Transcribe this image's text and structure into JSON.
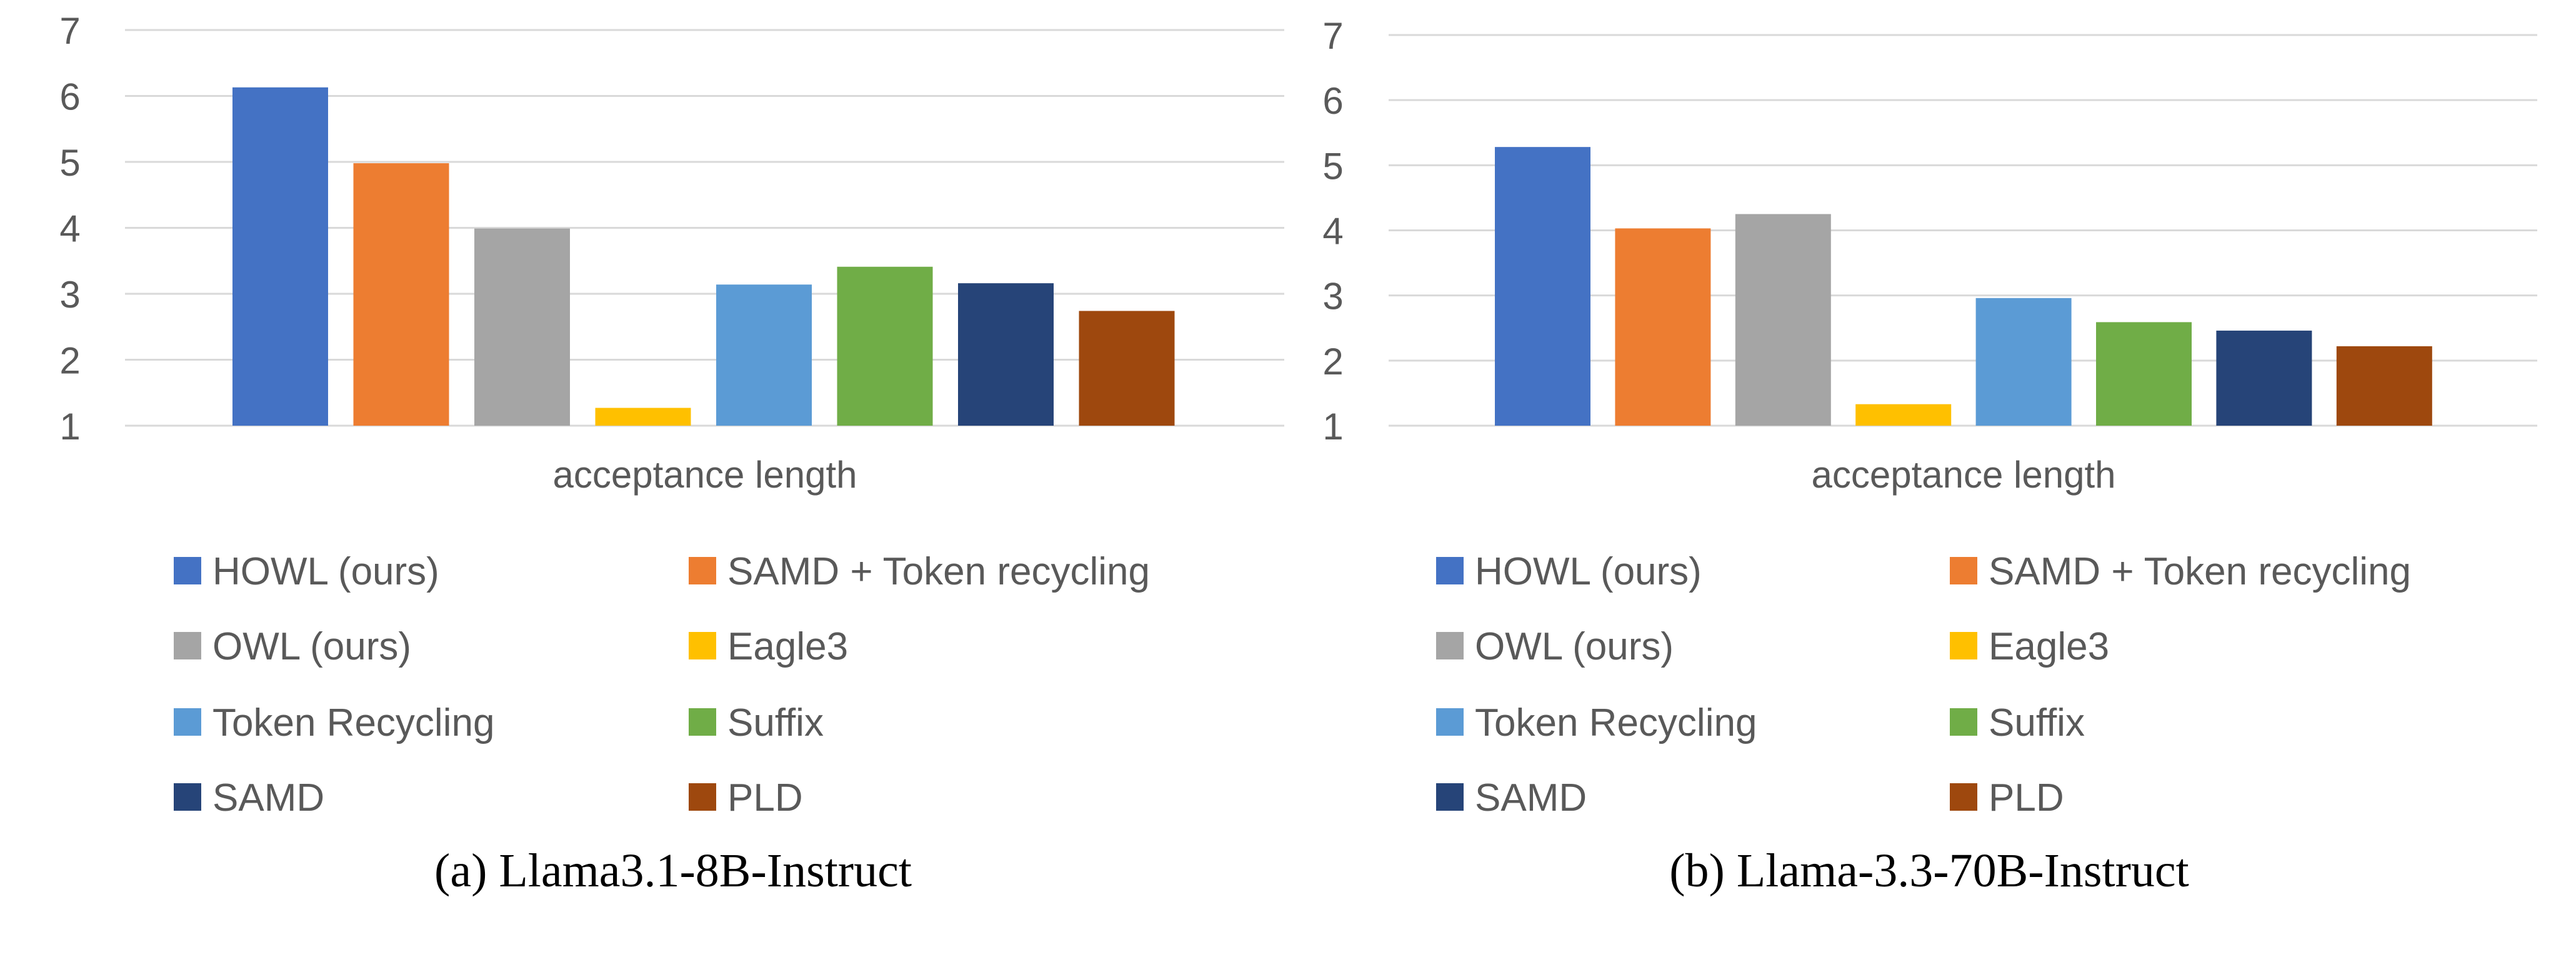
{
  "chart_data": [
    {
      "type": "bar",
      "title": "",
      "caption": "(a) Llama3.1-8B-Instruct",
      "xlabel": "acceptance length",
      "ylabel": "",
      "ylim": [
        1,
        7
      ],
      "yticks": [
        "1",
        "2",
        "3",
        "4",
        "5",
        "6",
        "7"
      ],
      "grid": true,
      "legend_position": "bottom",
      "categories": [
        "acceptance length"
      ],
      "series": [
        {
          "name": "HOWL (ours)",
          "values": [
            6.13
          ],
          "color": "#4472C4"
        },
        {
          "name": "SAMD + Token recycling",
          "values": [
            4.98
          ],
          "color": "#ED7D31"
        },
        {
          "name": "OWL (ours)",
          "values": [
            3.99
          ],
          "color": "#A5A5A5"
        },
        {
          "name": "Eagle3",
          "values": [
            1.27
          ],
          "color": "#FFC000"
        },
        {
          "name": "Token Recycling",
          "values": [
            3.14
          ],
          "color": "#5B9BD5"
        },
        {
          "name": "Suffix",
          "values": [
            3.41
          ],
          "color": "#70AD47"
        },
        {
          "name": "SAMD",
          "values": [
            3.16
          ],
          "color": "#264478"
        },
        {
          "name": "PLD",
          "values": [
            2.74
          ],
          "color": "#9E480E"
        }
      ]
    },
    {
      "type": "bar",
      "title": "",
      "caption": "(b) Llama-3.3-70B-Instruct",
      "xlabel": "acceptance length",
      "ylabel": "",
      "ylim": [
        1,
        7
      ],
      "yticks": [
        "1",
        "2",
        "3",
        "4",
        "5",
        "6",
        "7"
      ],
      "grid": true,
      "legend_position": "bottom",
      "categories": [
        "acceptance length"
      ],
      "series": [
        {
          "name": "HOWL (ours)",
          "values": [
            5.28
          ],
          "color": "#4472C4"
        },
        {
          "name": "SAMD + Token recycling",
          "values": [
            4.03
          ],
          "color": "#ED7D31"
        },
        {
          "name": "OWL (ours)",
          "values": [
            4.25
          ],
          "color": "#A5A5A5"
        },
        {
          "name": "Eagle3",
          "values": [
            1.33
          ],
          "color": "#FFC000"
        },
        {
          "name": "Token Recycling",
          "values": [
            2.96
          ],
          "color": "#5B9BD5"
        },
        {
          "name": "Suffix",
          "values": [
            2.59
          ],
          "color": "#70AD47"
        },
        {
          "name": "SAMD",
          "values": [
            2.46
          ],
          "color": "#264478"
        },
        {
          "name": "PLD",
          "values": [
            2.22
          ],
          "color": "#9E480E"
        }
      ]
    }
  ]
}
